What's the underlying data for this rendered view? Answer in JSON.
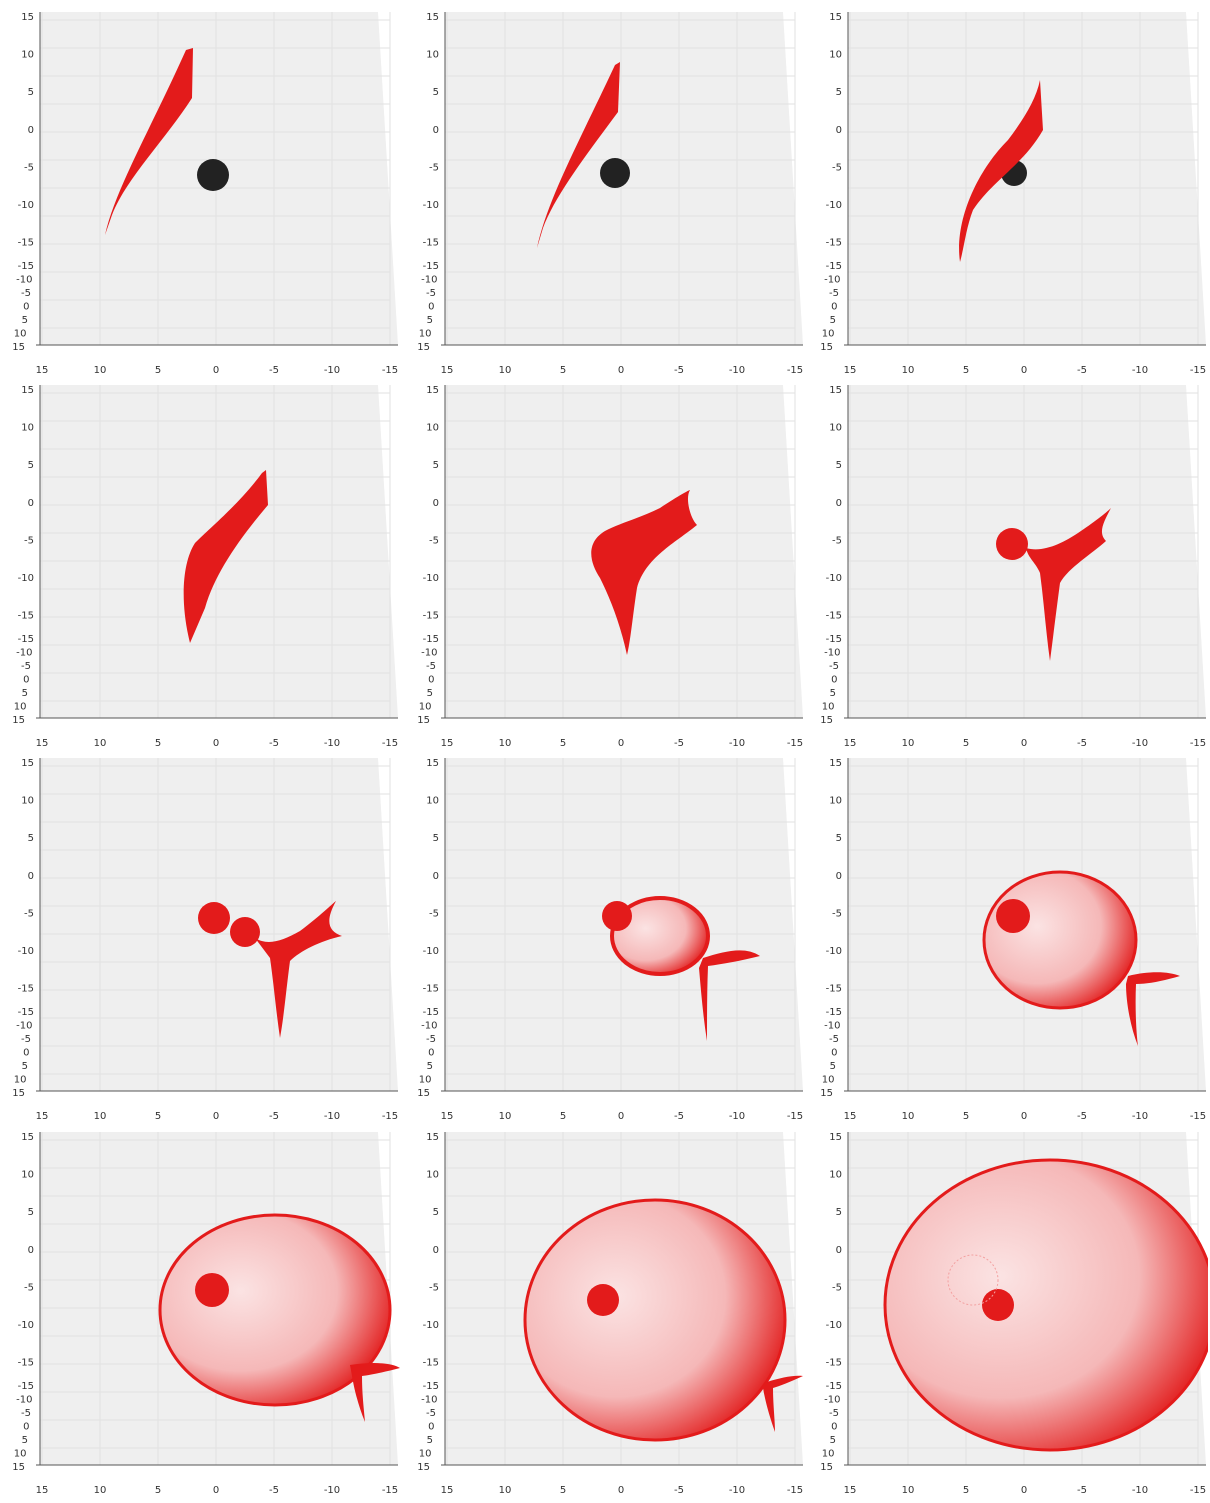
{
  "axes": {
    "vertical_ticks": [
      15,
      10,
      5,
      0,
      -5,
      -10,
      -15
    ],
    "depth_ticks": [
      -15,
      -10,
      -5,
      0,
      5,
      10,
      15
    ],
    "horizontal_ticks": [
      15,
      10,
      5,
      0,
      -5,
      -10,
      -15
    ]
  }
}
